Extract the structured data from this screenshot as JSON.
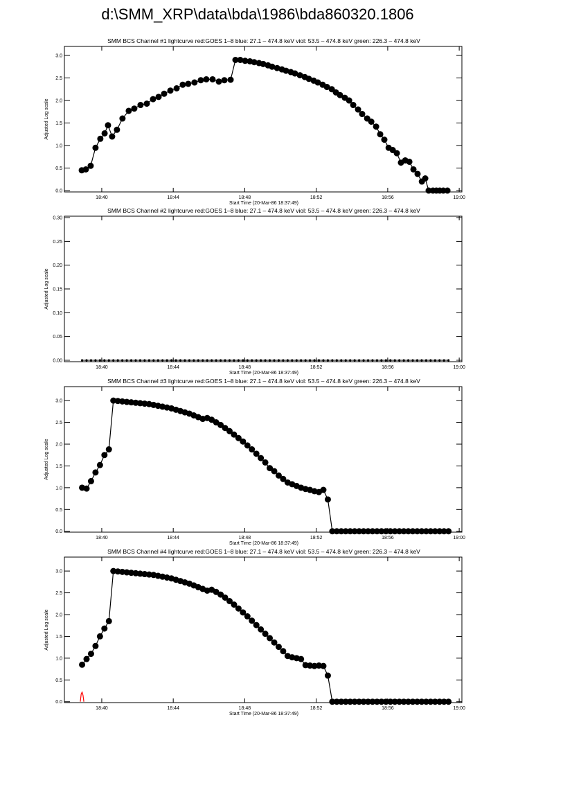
{
  "page_title": "d:\\SMM_XRP\\data\\bda\\1986\\bda860320.1806",
  "chart_data": [
    {
      "type": "line",
      "title": "SMM BCS Channel #1 lightcurve  red:GOES 1–8  blue: 27.1 – 474.8 keV  viol: 53.5 – 474.8 keV  green: 226.3 – 474.8 keV",
      "x_label": "Start Time (20-Mar-86 18:37:49)",
      "y_label": "Adjusted Log scale",
      "xlim": [
        37.91,
        60.15
      ],
      "ylim": [
        -0.03,
        3.2
      ],
      "xticks": [
        {
          "value": 40,
          "label": "18:40"
        },
        {
          "value": 44,
          "label": "18:44"
        },
        {
          "value": 48,
          "label": "18:48"
        },
        {
          "value": 52,
          "label": "18:52"
        },
        {
          "value": 56,
          "label": "18:56"
        },
        {
          "value": 60,
          "label": "19:00"
        }
      ],
      "yticks": [
        {
          "value": 0,
          "label": "0.0"
        },
        0.5,
        {
          "value": 1,
          "label": "1.0"
        },
        1.5,
        {
          "value": 2,
          "label": "2.0"
        },
        2.5,
        {
          "value": 3,
          "label": "3.0"
        }
      ],
      "marker_size": 4.5,
      "series": [
        {
          "color": "#000000",
          "markers": true,
          "x": [
            38.88,
            39.11,
            39.38,
            39.65,
            39.92,
            40.16,
            40.35,
            40.58,
            40.85,
            41.16,
            41.51,
            41.82,
            42.17,
            42.52,
            42.87,
            43.18,
            43.49,
            43.84,
            44.19,
            44.53,
            44.84,
            45.19,
            45.54,
            45.85,
            46.2,
            46.55,
            46.86,
            47.21,
            47.48,
            47.75,
            48.02,
            48.29,
            48.53,
            48.8,
            49.03,
            49.3,
            49.53,
            49.81,
            50.08,
            50.31,
            50.58,
            50.81,
            51.09,
            51.36,
            51.59,
            51.86,
            52.09,
            52.36,
            52.6,
            52.87,
            53.1,
            53.33,
            53.6,
            53.84,
            54.07,
            54.34,
            54.57,
            54.85,
            55.08,
            55.35,
            55.58,
            55.81,
            56.05,
            56.28,
            56.51,
            56.74,
            56.98,
            57.21,
            57.44,
            57.67,
            57.91,
            58.1,
            58.29,
            58.53,
            58.72,
            58.91,
            59.11,
            59.34
          ],
          "values": [
            0.45,
            0.47,
            0.55,
            0.95,
            1.15,
            1.27,
            1.45,
            1.2,
            1.35,
            1.6,
            1.77,
            1.82,
            1.9,
            1.93,
            2.03,
            2.08,
            2.15,
            2.22,
            2.27,
            2.35,
            2.37,
            2.4,
            2.45,
            2.47,
            2.47,
            2.42,
            2.45,
            2.46,
            2.9,
            2.9,
            2.88,
            2.87,
            2.85,
            2.83,
            2.81,
            2.78,
            2.75,
            2.72,
            2.69,
            2.66,
            2.63,
            2.6,
            2.56,
            2.52,
            2.48,
            2.44,
            2.4,
            2.35,
            2.3,
            2.25,
            2.18,
            2.12,
            2.06,
            2.0,
            1.9,
            1.8,
            1.7,
            1.6,
            1.53,
            1.42,
            1.25,
            1.13,
            0.95,
            0.9,
            0.83,
            0.62,
            0.67,
            0.64,
            0.47,
            0.37,
            0.2,
            0.27,
            0,
            0,
            0,
            0,
            0,
            0
          ]
        }
      ]
    },
    {
      "type": "line",
      "title": "SMM BCS Channel #2 lightcurve  red:GOES 1–8  blue: 27.1 – 474.8 keV  viol: 53.5 – 474.8 keV  green: 226.3 – 474.8 keV",
      "x_label": "Start Time (20-Mar-86 18:37:49)",
      "y_label": "Adjusted Log scale",
      "xlim": [
        37.91,
        60.15
      ],
      "ylim": [
        -0.003,
        0.303
      ],
      "xticks": [
        {
          "value": 40,
          "label": "18:40"
        },
        {
          "value": 44,
          "label": "18:44"
        },
        {
          "value": 48,
          "label": "18:48"
        },
        {
          "value": 52,
          "label": "18:52"
        },
        {
          "value": 56,
          "label": "18:56"
        },
        {
          "value": 60,
          "label": "19:00"
        }
      ],
      "yticks": [
        {
          "value": 0,
          "label": "0.00"
        },
        0.05,
        {
          "value": 0.1,
          "label": "0.10"
        },
        0.15,
        {
          "value": 0.2,
          "label": "0.20"
        },
        0.25,
        {
          "value": 0.3,
          "label": "0.30"
        }
      ],
      "marker_size": 1.6,
      "series": [
        {
          "color": "#000000",
          "markers": true,
          "x": [
            38.9,
            39.15,
            39.4,
            39.65,
            39.9,
            40.15,
            40.4,
            40.65,
            40.9,
            41.15,
            41.4,
            41.65,
            41.9,
            42.15,
            42.4,
            42.65,
            42.9,
            43.15,
            43.4,
            43.65,
            43.9,
            44.15,
            44.4,
            44.65,
            44.9,
            45.15,
            45.4,
            45.65,
            45.9,
            46.15,
            46.4,
            46.65,
            46.9,
            47.15,
            47.4,
            47.65,
            47.9,
            48.15,
            48.4,
            48.65,
            48.9,
            49.15,
            49.4,
            49.65,
            49.9,
            50.15,
            50.4,
            50.65,
            50.9,
            51.15,
            51.4,
            51.65,
            51.9,
            52.15,
            52.4,
            52.65,
            52.9,
            53.15,
            53.4,
            53.65,
            53.9,
            54.15,
            54.4,
            54.65,
            54.9,
            55.15,
            55.4,
            55.65,
            55.9,
            56.15,
            56.4,
            56.65,
            56.9,
            57.15,
            57.4,
            57.65,
            57.9,
            58.15,
            58.4,
            58.65,
            58.9,
            59.15,
            59.4
          ],
          "values": [
            0,
            0,
            0,
            0,
            0,
            0,
            0,
            0,
            0,
            0,
            0,
            0,
            0,
            0,
            0,
            0,
            0,
            0,
            0,
            0,
            0,
            0,
            0,
            0,
            0,
            0,
            0,
            0,
            0,
            0,
            0,
            0,
            0,
            0,
            0,
            0,
            0,
            0,
            0,
            0,
            0,
            0,
            0,
            0,
            0,
            0,
            0,
            0,
            0,
            0,
            0,
            0,
            0,
            0,
            0,
            0,
            0,
            0,
            0,
            0,
            0,
            0,
            0,
            0,
            0,
            0,
            0,
            0,
            0,
            0,
            0,
            0,
            0,
            0,
            0,
            0,
            0,
            0,
            0,
            0,
            0,
            0,
            0
          ]
        }
      ]
    },
    {
      "type": "line",
      "title": "SMM BCS Channel #3 lightcurve  red:GOES 1–8  blue: 27.1 – 474.8 keV  viol: 53.5 – 474.8 keV  green: 226.3 – 474.8 keV",
      "x_label": "Start Time (20-Mar-86 18:37:49)",
      "y_label": "Adjusted Log scale",
      "xlim": [
        37.91,
        60.15
      ],
      "ylim": [
        -0.02,
        3.32
      ],
      "xticks": [
        {
          "value": 40,
          "label": "18:40"
        },
        {
          "value": 44,
          "label": "18:44"
        },
        {
          "value": 48,
          "label": "18:48"
        },
        {
          "value": 52,
          "label": "18:52"
        },
        {
          "value": 56,
          "label": "18:56"
        },
        {
          "value": 60,
          "label": "19:00"
        }
      ],
      "yticks": [
        {
          "value": 0,
          "label": "0.0"
        },
        0.5,
        {
          "value": 1,
          "label": "1.0"
        },
        1.5,
        {
          "value": 2,
          "label": "2.0"
        },
        2.5,
        {
          "value": 3,
          "label": "3.0"
        }
      ],
      "marker_size": 4.5,
      "series": [
        {
          "color": "#000000",
          "markers": true,
          "x": [
            38.9,
            39.15,
            39.4,
            39.65,
            39.9,
            40.15,
            40.4,
            40.65,
            40.9,
            41.15,
            41.4,
            41.65,
            41.9,
            42.15,
            42.4,
            42.65,
            42.9,
            43.15,
            43.4,
            43.65,
            43.9,
            44.15,
            44.4,
            44.65,
            44.9,
            45.15,
            45.4,
            45.65,
            45.9,
            46.15,
            46.4,
            46.65,
            46.9,
            47.15,
            47.4,
            47.65,
            47.9,
            48.15,
            48.4,
            48.65,
            48.9,
            49.15,
            49.4,
            49.65,
            49.9,
            50.15,
            50.4,
            50.65,
            50.9,
            51.15,
            51.4,
            51.65,
            51.9,
            52.15,
            52.4,
            52.65,
            52.9,
            53.15,
            53.4,
            53.65,
            53.9,
            54.15,
            54.4,
            54.65,
            54.9,
            55.15,
            55.4,
            55.65,
            55.9,
            56.15,
            56.4,
            56.65,
            56.9,
            57.15,
            57.4,
            57.65,
            57.9,
            58.15,
            58.4,
            58.65,
            58.9,
            59.15,
            59.4
          ],
          "values": [
            1.0,
            0.98,
            1.15,
            1.35,
            1.52,
            1.75,
            1.88,
            3.0,
            2.99,
            2.98,
            2.97,
            2.96,
            2.95,
            2.94,
            2.93,
            2.92,
            2.9,
            2.88,
            2.86,
            2.84,
            2.82,
            2.79,
            2.76,
            2.73,
            2.7,
            2.66,
            2.62,
            2.58,
            2.6,
            2.56,
            2.5,
            2.44,
            2.37,
            2.3,
            2.22,
            2.14,
            2.06,
            1.97,
            1.88,
            1.78,
            1.68,
            1.58,
            1.45,
            1.38,
            1.28,
            1.2,
            1.12,
            1.08,
            1.04,
            1.0,
            0.97,
            0.95,
            0.92,
            0.9,
            0.95,
            0.73,
            0,
            0,
            0,
            0,
            0,
            0,
            0,
            0,
            0,
            0,
            0,
            0,
            0,
            0,
            0,
            0,
            0,
            0,
            0,
            0,
            0,
            0,
            0,
            0,
            0,
            0,
            0
          ]
        }
      ]
    },
    {
      "type": "line",
      "title": "SMM BCS Channel #4 lightcurve  red:GOES 1–8  blue: 27.1 – 474.8 keV  viol: 53.5 – 474.8 keV  green: 226.3 – 474.8 keV",
      "x_label": "Start Time (20-Mar-86 18:37:49)",
      "y_label": "Adjusted Log scale",
      "xlim": [
        37.91,
        60.15
      ],
      "ylim": [
        -0.02,
        3.32
      ],
      "xticks": [
        {
          "value": 40,
          "label": "18:40"
        },
        {
          "value": 44,
          "label": "18:44"
        },
        {
          "value": 48,
          "label": "18:48"
        },
        {
          "value": 52,
          "label": "18:52"
        },
        {
          "value": 56,
          "label": "18:56"
        },
        {
          "value": 60,
          "label": "19:00"
        }
      ],
      "yticks": [
        {
          "value": 0,
          "label": "0.0"
        },
        0.5,
        {
          "value": 1,
          "label": "1.0"
        },
        1.5,
        {
          "value": 2,
          "label": "2.0"
        },
        2.5,
        {
          "value": 3,
          "label": "3.0"
        }
      ],
      "marker_size": 4.5,
      "series": [
        {
          "color": "#000000",
          "markers": true,
          "x": [
            38.9,
            39.15,
            39.4,
            39.65,
            39.9,
            40.15,
            40.4,
            40.65,
            40.9,
            41.15,
            41.4,
            41.65,
            41.9,
            42.15,
            42.4,
            42.65,
            42.9,
            43.15,
            43.4,
            43.65,
            43.9,
            44.15,
            44.4,
            44.65,
            44.9,
            45.15,
            45.4,
            45.65,
            45.9,
            46.15,
            46.4,
            46.65,
            46.9,
            47.15,
            47.4,
            47.65,
            47.9,
            48.15,
            48.4,
            48.65,
            48.9,
            49.15,
            49.4,
            49.65,
            49.9,
            50.15,
            50.4,
            50.65,
            50.9,
            51.15,
            51.4,
            51.65,
            51.9,
            52.15,
            52.4,
            52.65,
            52.9,
            53.15,
            53.4,
            53.65,
            53.9,
            54.15,
            54.4,
            54.65,
            54.9,
            55.15,
            55.4,
            55.65,
            55.9,
            56.15,
            56.4,
            56.65,
            56.9,
            57.15,
            57.4,
            57.65,
            57.9,
            58.15,
            58.4,
            58.65,
            58.9,
            59.15,
            59.4
          ],
          "values": [
            0.85,
            0.98,
            1.1,
            1.28,
            1.5,
            1.68,
            1.85,
            3.0,
            2.99,
            2.98,
            2.97,
            2.96,
            2.95,
            2.94,
            2.93,
            2.92,
            2.91,
            2.89,
            2.87,
            2.85,
            2.83,
            2.8,
            2.77,
            2.74,
            2.71,
            2.67,
            2.63,
            2.59,
            2.55,
            2.57,
            2.52,
            2.46,
            2.39,
            2.31,
            2.23,
            2.14,
            2.05,
            1.96,
            1.86,
            1.76,
            1.66,
            1.56,
            1.46,
            1.36,
            1.26,
            1.16,
            1.05,
            1.02,
            1.0,
            0.98,
            0.84,
            0.83,
            0.82,
            0.83,
            0.82,
            0.6,
            0,
            0,
            0,
            0,
            0,
            0,
            0,
            0,
            0,
            0,
            0,
            0,
            0,
            0,
            0,
            0,
            0,
            0,
            0,
            0,
            0,
            0,
            0,
            0,
            0,
            0,
            0
          ]
        },
        {
          "color": "#ff0000",
          "markers": false,
          "x": [
            38.8,
            38.85,
            38.9,
            38.95,
            39.0
          ],
          "values": [
            0,
            0.18,
            0.22,
            0.15,
            0
          ]
        }
      ]
    }
  ]
}
